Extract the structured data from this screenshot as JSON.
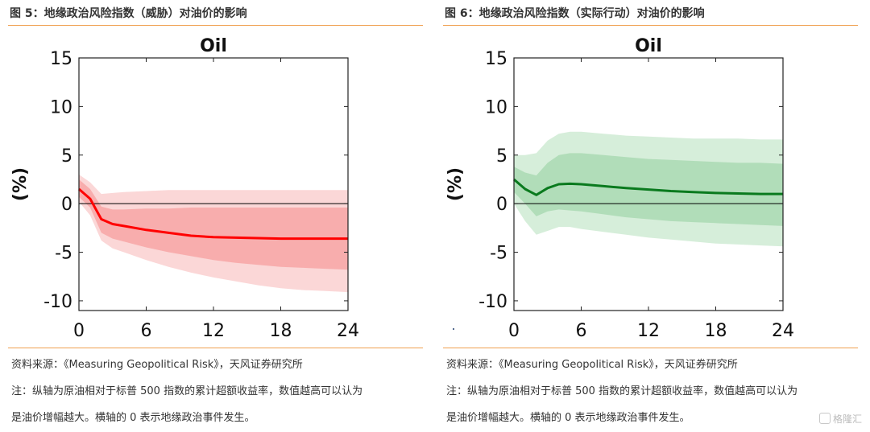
{
  "panels": [
    {
      "figure_title": "图 5：地缘政治风险指数（威胁）对油价的影响",
      "source": "资料来源：《Measuring Geopolitical Risk》，天风证券研究所",
      "note_line1": "注：纵轴为原油相对于标普 500 指数的累计超额收益率，数值越高可以认为",
      "note_line2": "是油价增幅越大。横轴的 0 表示地缘政治事件发生。"
    },
    {
      "figure_title": "图 6：地缘政治风险指数（实际行动）对油价的影响",
      "source": "资料来源：《Measuring Geopolitical Risk》，天风证券研究所",
      "note_line1": "注：纵轴为原油相对于标普 500 指数的累计超额收益率，数值越高可以认为",
      "note_line2": "是油价增幅越大。横轴的 0 表示地缘政治事件发生。"
    }
  ],
  "watermark": "格隆汇",
  "chart_data": [
    {
      "type": "line",
      "title": "Oil",
      "ylabel": "(%)",
      "xlabel": "",
      "xlim": [
        0,
        24
      ],
      "ylim": [
        -11,
        15
      ],
      "xticks": [
        0,
        6,
        12,
        18,
        24
      ],
      "yticks": [
        15,
        10,
        5,
        0,
        -5,
        -10
      ],
      "zero_line": true,
      "grid": false,
      "colors": {
        "line": "#ff0000",
        "band_inner": "#f7a3a3",
        "band_outer": "#fbd3d3"
      },
      "x": [
        0,
        1,
        2,
        3,
        4,
        6,
        8,
        10,
        12,
        14,
        16,
        18,
        20,
        22,
        24
      ],
      "series": [
        {
          "role": "median",
          "values": [
            1.5,
            0.5,
            -1.6,
            -2.1,
            -2.3,
            -2.7,
            -3.0,
            -3.3,
            -3.45,
            -3.5,
            -3.55,
            -3.6,
            -3.6,
            -3.6,
            -3.6
          ]
        }
      ],
      "bands": [
        {
          "role": "outer",
          "upper": [
            3.0,
            2.2,
            1.0,
            1.1,
            1.2,
            1.3,
            1.4,
            1.4,
            1.4,
            1.4,
            1.4,
            1.4,
            1.4,
            1.4,
            1.4
          ],
          "lower": [
            0.2,
            -1.2,
            -3.8,
            -4.6,
            -5.0,
            -5.8,
            -6.5,
            -7.1,
            -7.6,
            -8.0,
            -8.4,
            -8.7,
            -8.9,
            -9.0,
            -9.1
          ]
        },
        {
          "role": "inner",
          "upper": [
            2.5,
            1.5,
            -0.3,
            -0.6,
            -0.6,
            -0.5,
            -0.5,
            -0.4,
            -0.4,
            -0.4,
            -0.4,
            -0.4,
            -0.4,
            -0.4,
            -0.4
          ],
          "lower": [
            0.7,
            -0.4,
            -3.0,
            -3.6,
            -3.9,
            -4.5,
            -5.0,
            -5.4,
            -5.8,
            -6.1,
            -6.3,
            -6.5,
            -6.6,
            -6.7,
            -6.8
          ]
        }
      ]
    },
    {
      "type": "line",
      "title": "Oil",
      "ylabel": "(%)",
      "xlabel": "",
      "xlim": [
        0,
        24
      ],
      "ylim": [
        -11,
        15
      ],
      "xticks": [
        0,
        6,
        12,
        18,
        24
      ],
      "yticks": [
        15,
        10,
        5,
        0,
        -5,
        -10
      ],
      "zero_line": true,
      "grid": false,
      "colors": {
        "line": "#0a7a1e",
        "band_inner": "#a8d8b0",
        "band_outer": "#d2ecd6"
      },
      "x": [
        0,
        1,
        2,
        3,
        4,
        5,
        6,
        8,
        10,
        12,
        14,
        16,
        18,
        20,
        22,
        24
      ],
      "series": [
        {
          "role": "median",
          "values": [
            2.5,
            1.5,
            0.9,
            1.6,
            2.0,
            2.05,
            2.0,
            1.8,
            1.6,
            1.45,
            1.3,
            1.2,
            1.1,
            1.05,
            1.0,
            1.0
          ]
        }
      ],
      "bands": [
        {
          "role": "outer",
          "upper": [
            5.0,
            5.0,
            5.2,
            6.5,
            7.2,
            7.4,
            7.4,
            7.2,
            7.0,
            6.9,
            6.8,
            6.7,
            6.7,
            6.7,
            6.6,
            6.6
          ],
          "lower": [
            0.0,
            -1.8,
            -3.2,
            -2.8,
            -2.4,
            -2.4,
            -2.6,
            -2.9,
            -3.2,
            -3.5,
            -3.7,
            -3.9,
            -4.1,
            -4.2,
            -4.3,
            -4.4
          ]
        },
        {
          "role": "inner",
          "upper": [
            3.8,
            3.2,
            2.9,
            4.2,
            5.0,
            5.2,
            5.2,
            5.0,
            4.8,
            4.6,
            4.5,
            4.4,
            4.3,
            4.2,
            4.2,
            4.1
          ],
          "lower": [
            1.2,
            0.0,
            -1.3,
            -0.8,
            -0.6,
            -0.7,
            -0.8,
            -1.1,
            -1.4,
            -1.6,
            -1.8,
            -1.9,
            -2.0,
            -2.1,
            -2.2,
            -2.3
          ]
        }
      ]
    }
  ]
}
